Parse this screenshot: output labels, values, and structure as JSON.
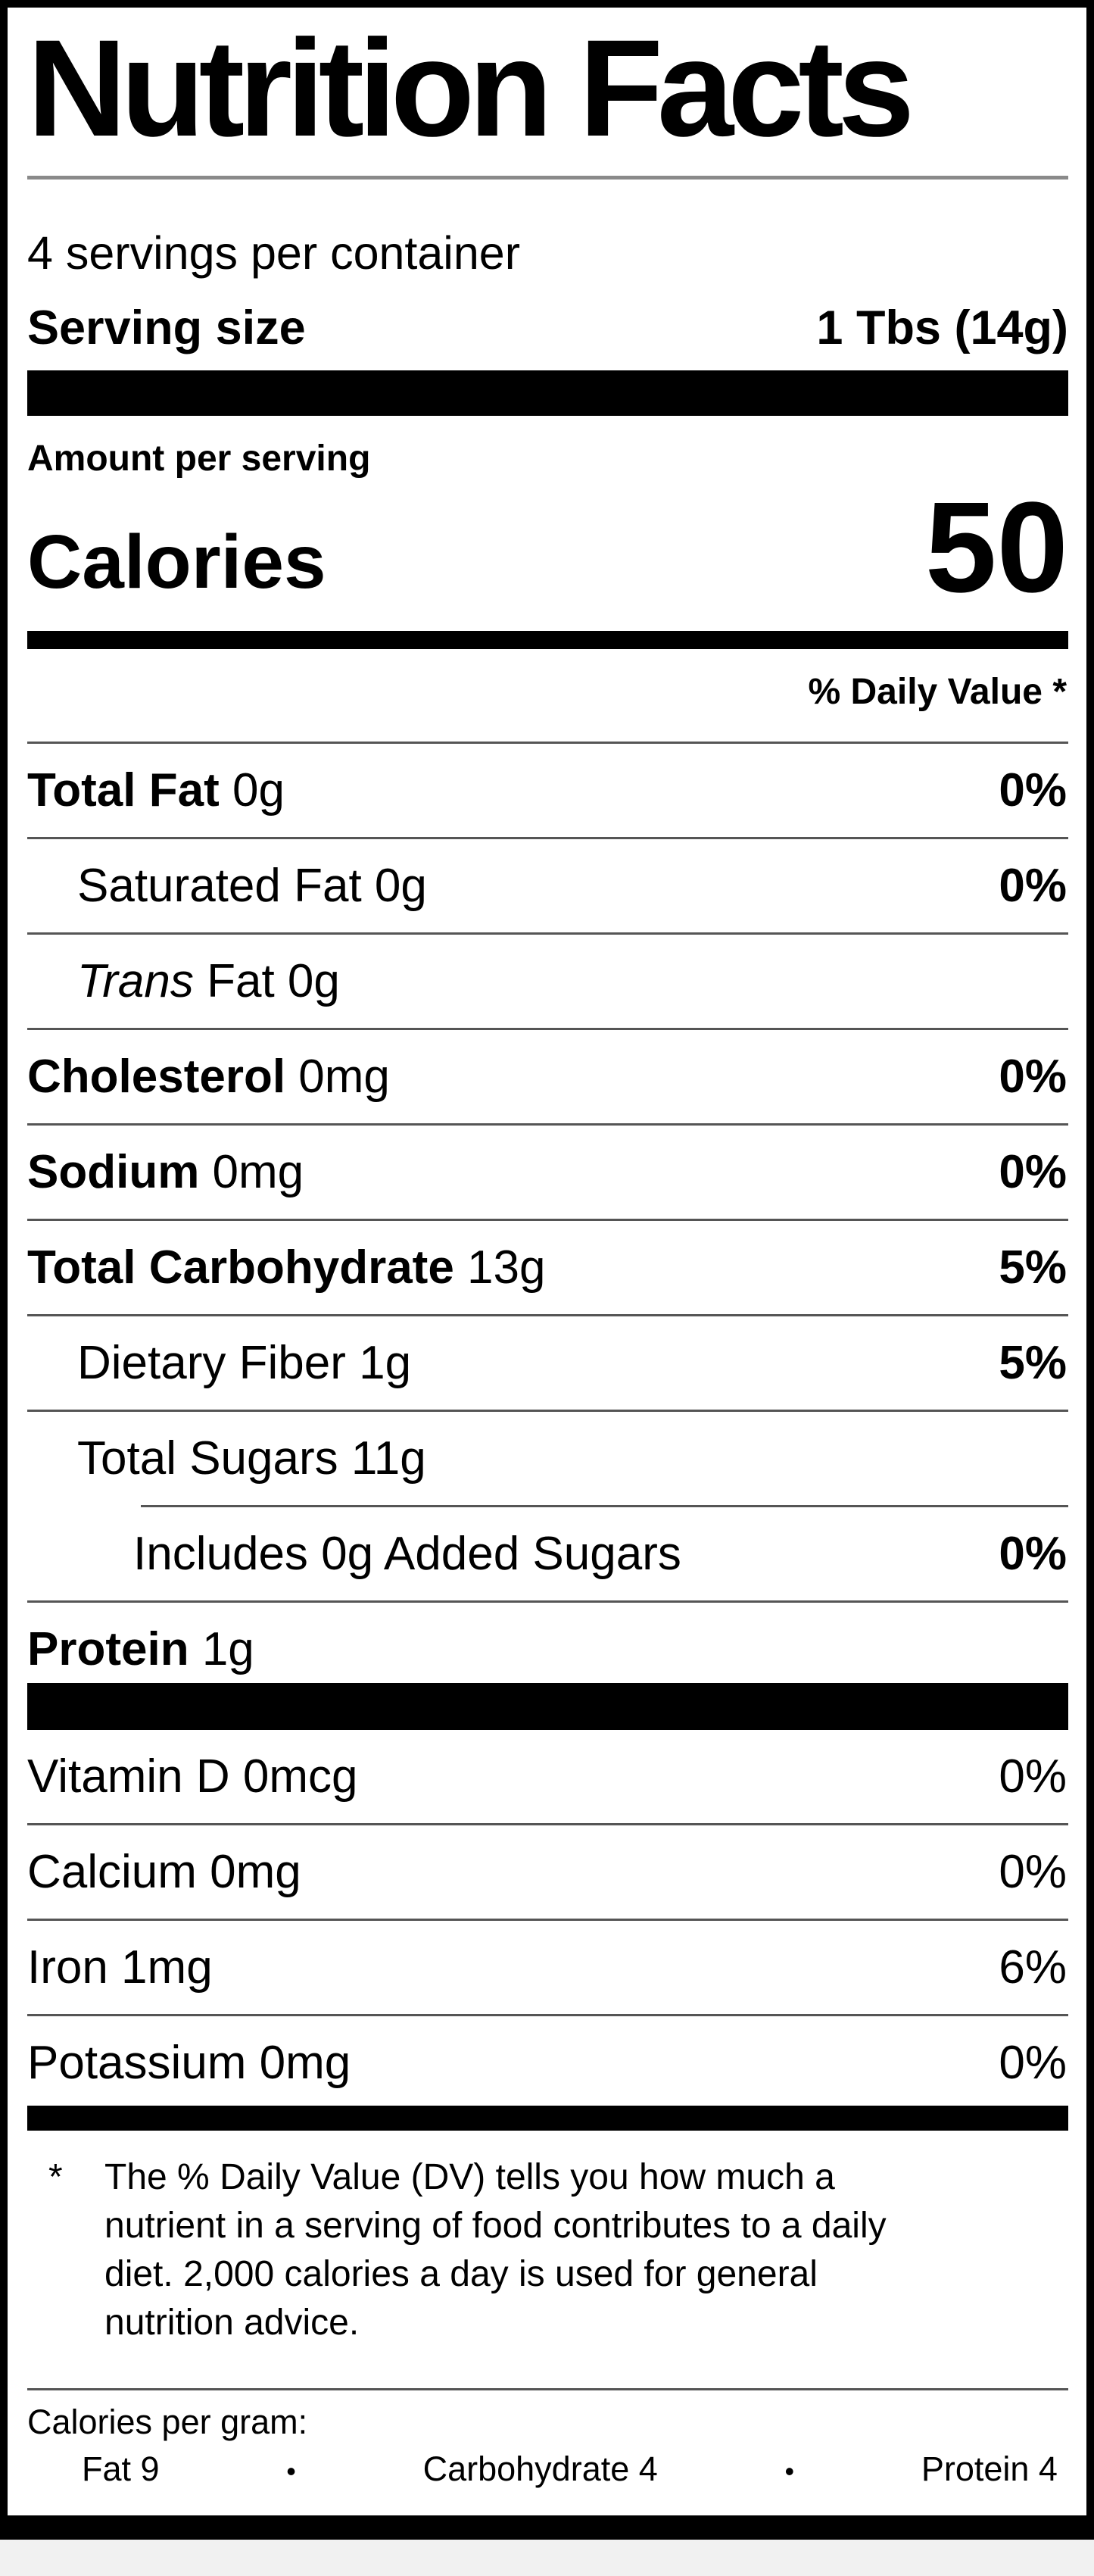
{
  "colors": {
    "ink": "#000000",
    "paper": "#ffffff"
  },
  "title": "Nutrition Facts",
  "servings_line": "4 servings per container",
  "serving_size": {
    "label": "Serving size",
    "value": "1 Tbs (14g)"
  },
  "amount_per_serving": "Amount per serving",
  "calories": {
    "label": "Calories",
    "value": "50"
  },
  "daily_value_header": "% Daily Value *",
  "rows": [
    {
      "lead": "Total Fat",
      "rest": " 0g",
      "dv": "0%"
    },
    {
      "lead": "",
      "rest": "Saturated Fat 0g",
      "dv": "0%"
    },
    {
      "lead": "Trans",
      "rest": " Fat 0g",
      "dv": ""
    },
    {
      "lead": "Cholesterol",
      "rest": " 0mg",
      "dv": "0%"
    },
    {
      "lead": "Sodium",
      "rest": " 0mg",
      "dv": "0%"
    },
    {
      "lead": "Total Carbohydrate",
      "rest": " 13g",
      "dv": "5%"
    },
    {
      "lead": "",
      "rest": "Dietary Fiber 1g",
      "dv": "5%"
    },
    {
      "lead": "",
      "rest": "Total Sugars 11g",
      "dv": ""
    },
    {
      "lead": "",
      "rest": "Includes 0g Added Sugars",
      "dv": "0%"
    },
    {
      "lead": "Protein",
      "rest": " 1g",
      "dv": ""
    }
  ],
  "vitamins": [
    {
      "name": "Vitamin D 0mcg",
      "dv": "0%"
    },
    {
      "name": "Calcium 0mg",
      "dv": "0%"
    },
    {
      "name": "Iron 1mg",
      "dv": "6%"
    },
    {
      "name": "Potassium 0mg",
      "dv": "0%"
    }
  ],
  "footnote": {
    "marker": "*",
    "text": "The % Daily Value (DV) tells you how much a nutrient in a serving of food contributes to a daily diet. 2,000 calories a day is used for general nutrition advice."
  },
  "calories_per_gram": {
    "label": "Calories per gram:",
    "bullet": "•",
    "items": [
      "Fat 9",
      "Carbohydrate 4",
      "Protein 4"
    ]
  }
}
